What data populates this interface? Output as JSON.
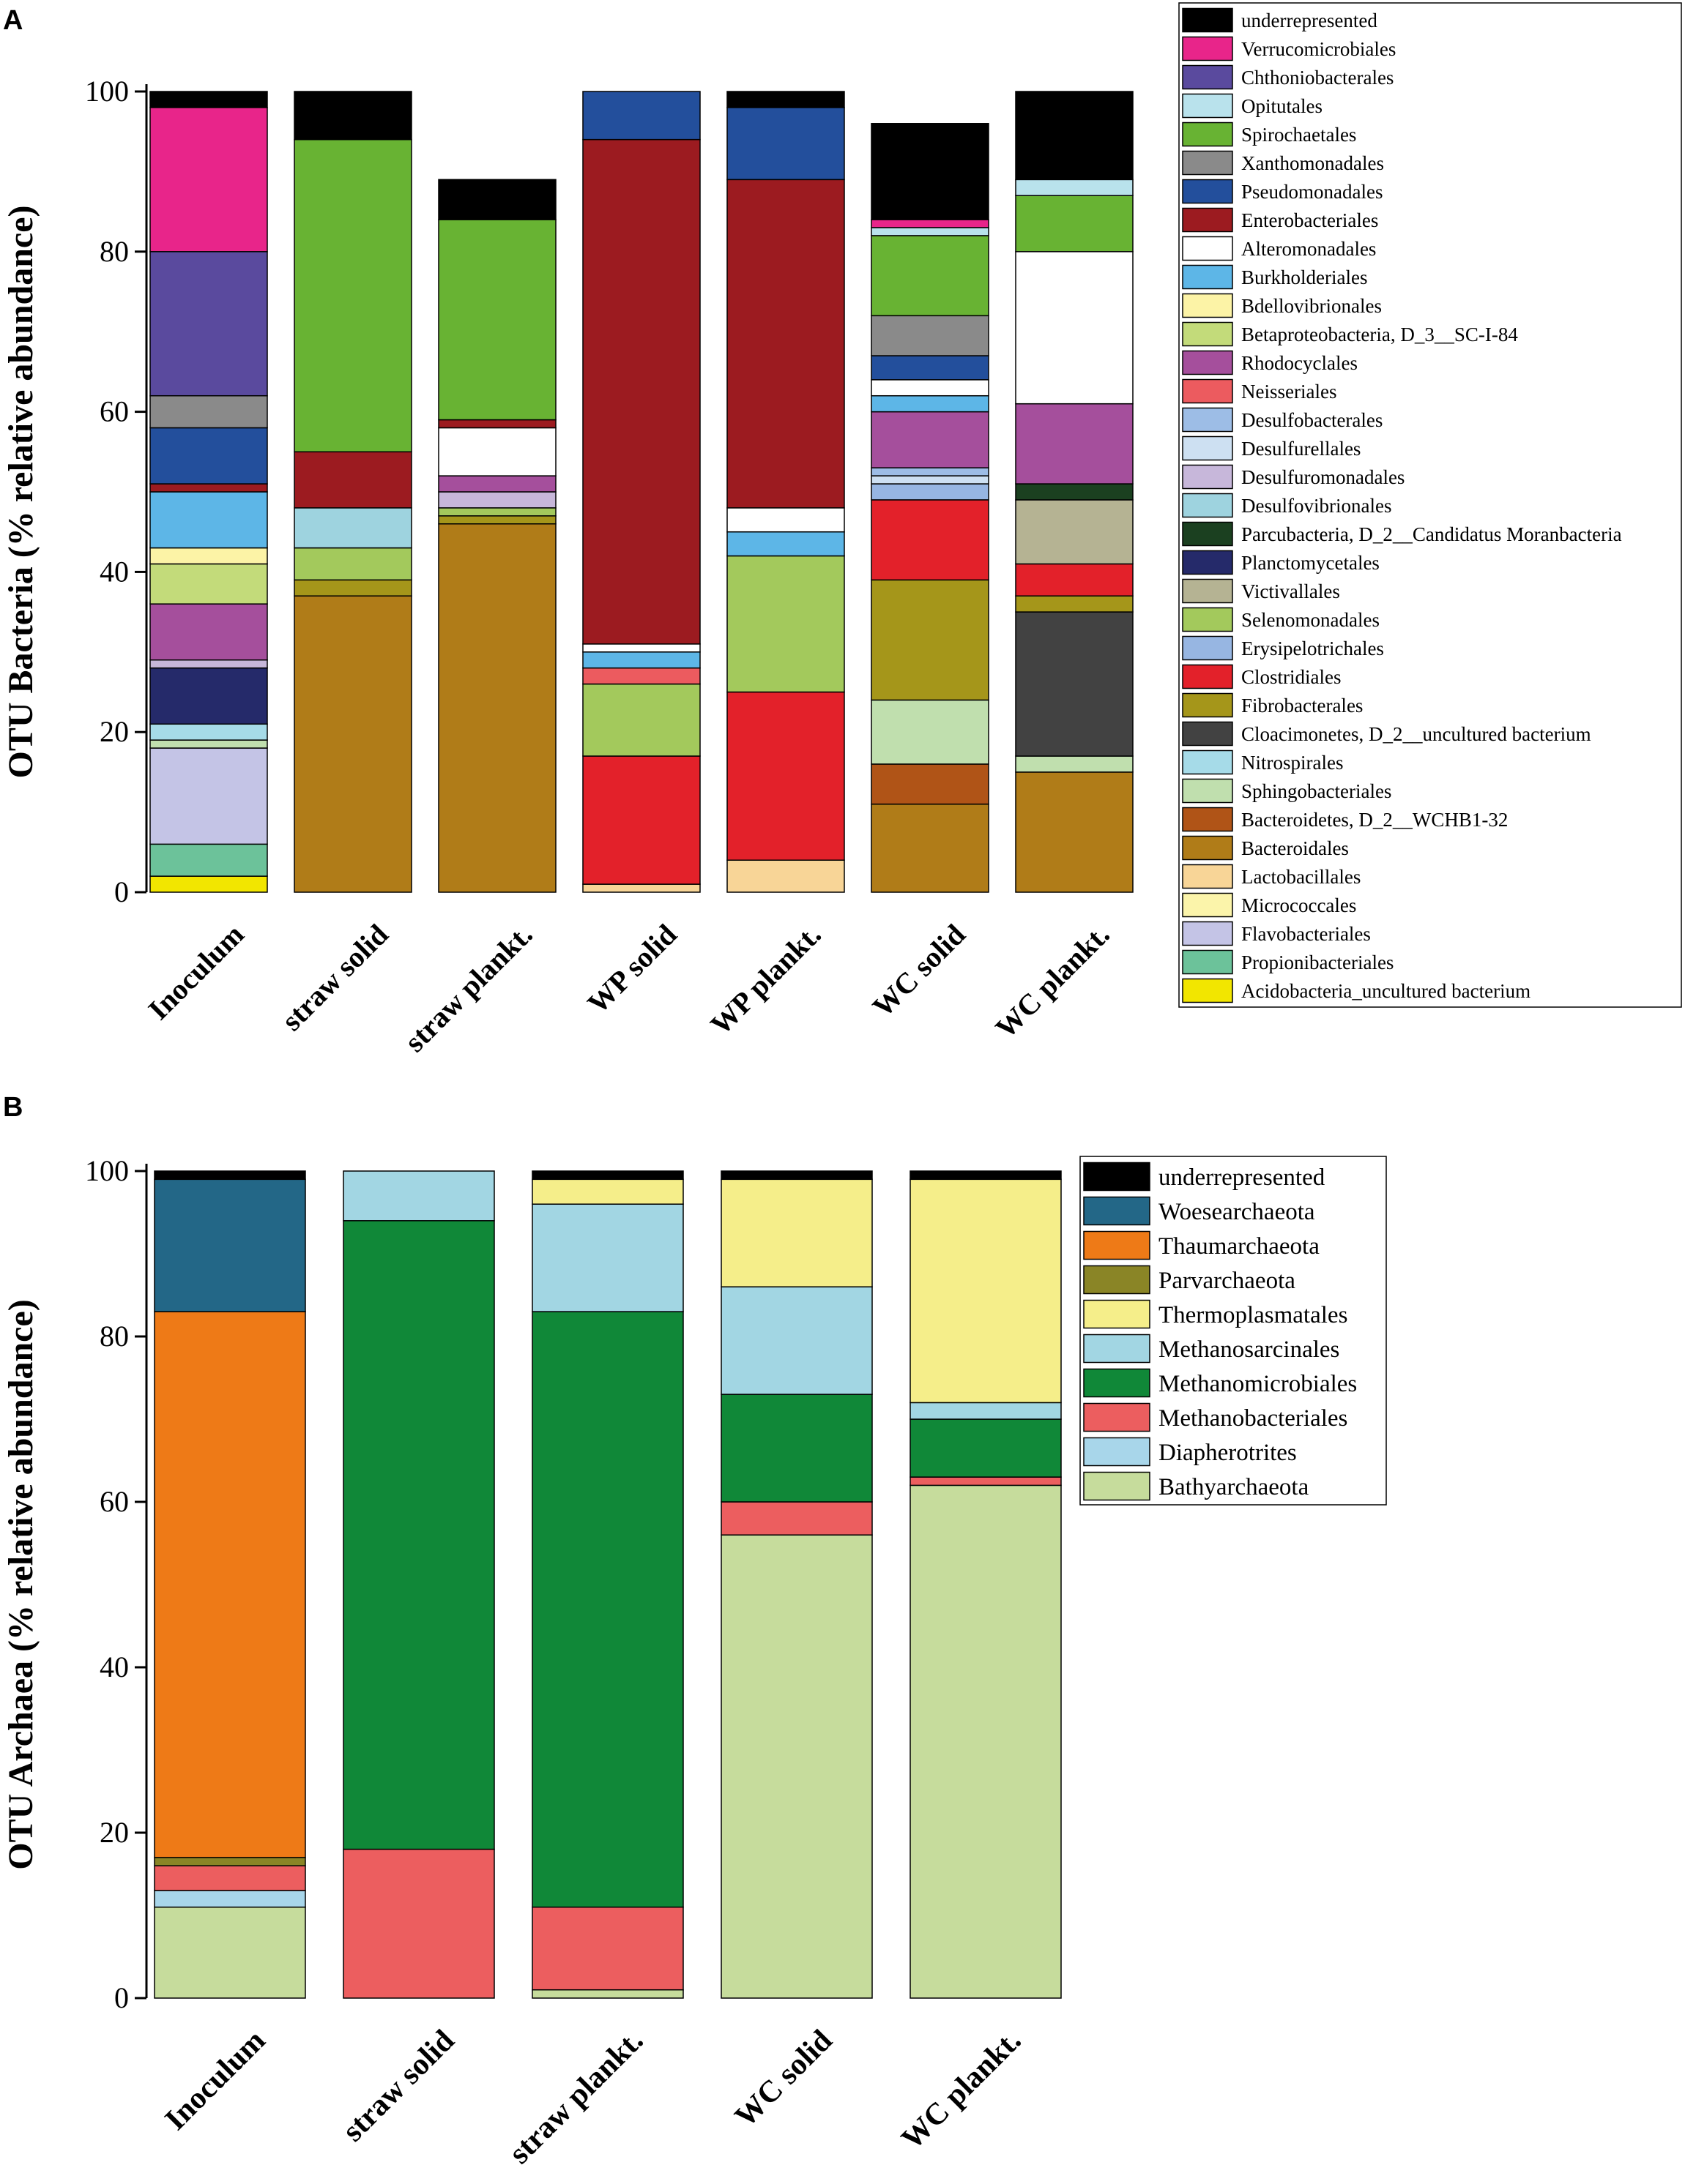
{
  "chart_data": [
    {
      "type": "bar",
      "stacked": true,
      "panel": "A",
      "ylabel": "OTU Bacteria (% relative abundance)",
      "ylim": [
        0,
        100
      ],
      "yticks": [
        0,
        20,
        40,
        60,
        80,
        100
      ],
      "categories": [
        "Inoculum",
        "straw solid",
        "straw plankt.",
        "WP solid",
        "WP plankt.",
        "WC solid",
        "WC plankt."
      ],
      "legend_position": "right",
      "series": [
        {
          "name": "Acidobacteria_uncultured bacterium",
          "color": "#f2e600",
          "values": [
            2,
            0,
            0,
            0,
            0,
            0,
            0
          ]
        },
        {
          "name": "Propionibacteriales",
          "color": "#6cc29a",
          "values": [
            4,
            0,
            0,
            0,
            0,
            0,
            0
          ]
        },
        {
          "name": "Flavobacteriales",
          "color": "#c4c4e6",
          "values": [
            12,
            0,
            0,
            0,
            0,
            0,
            0
          ]
        },
        {
          "name": "Micrococcales",
          "color": "#fbf4aa",
          "values": [
            0,
            0,
            0,
            0,
            0,
            0,
            0
          ]
        },
        {
          "name": "Lactobacillales",
          "color": "#f8d597",
          "values": [
            0,
            0,
            0,
            1,
            4,
            0,
            0
          ]
        },
        {
          "name": "Bacteroidales",
          "color": "#b07c18",
          "values": [
            0,
            37,
            46,
            0,
            0,
            11,
            15
          ]
        },
        {
          "name": "Bacteroidetes, D_2__WCHB1-32",
          "color": "#b05417",
          "values": [
            0,
            0,
            0,
            0,
            0,
            5,
            0
          ]
        },
        {
          "name": "Sphingobacteriales",
          "color": "#c0dfae",
          "values": [
            1,
            0,
            0,
            0,
            0,
            8,
            2
          ]
        },
        {
          "name": "Nitrospirales",
          "color": "#a6dbe8",
          "values": [
            2,
            0,
            0,
            0,
            0,
            0,
            0
          ]
        },
        {
          "name": "Cloacimonetes, D_2__uncultured bacterium",
          "color": "#424242",
          "values": [
            0,
            0,
            0,
            0,
            0,
            0,
            18
          ]
        },
        {
          "name": "Fibrobacterales",
          "color": "#a5961a",
          "values": [
            0,
            2,
            1,
            0,
            0,
            15,
            2
          ]
        },
        {
          "name": "Clostridiales",
          "color": "#e3212a",
          "values": [
            0,
            0,
            0,
            16,
            21,
            10,
            4
          ]
        },
        {
          "name": "Erysipelotrichales",
          "color": "#97b6e2",
          "values": [
            0,
            0,
            0,
            0,
            0,
            2,
            0
          ]
        },
        {
          "name": "Selenomonadales",
          "color": "#a3c95c",
          "values": [
            0,
            4,
            1,
            9,
            17,
            0,
            0
          ]
        },
        {
          "name": "Victivallales",
          "color": "#b5b393",
          "values": [
            0,
            0,
            0,
            0,
            0,
            0,
            8
          ]
        },
        {
          "name": "Planctomycetales",
          "color": "#252a6a",
          "values": [
            7,
            0,
            0,
            0,
            0,
            0,
            0
          ]
        },
        {
          "name": "Parcubacteria, D_2__Candidatus Moranbacteria",
          "color": "#1b4020",
          "values": [
            0,
            0,
            0,
            0,
            0,
            0,
            2
          ]
        },
        {
          "name": "Desulfovibrionales",
          "color": "#9ed3df",
          "values": [
            0,
            5,
            0,
            0,
            0,
            0,
            0
          ]
        },
        {
          "name": "Desulfuromonadales",
          "color": "#c7b7da",
          "values": [
            1,
            0,
            2,
            0,
            0,
            0,
            0
          ]
        },
        {
          "name": "Desulfurellales",
          "color": "#cde0f2",
          "values": [
            0,
            0,
            0,
            0,
            0,
            1,
            0
          ]
        },
        {
          "name": "Desulfobacterales",
          "color": "#9dbde6",
          "values": [
            0,
            0,
            0,
            0,
            0,
            1,
            0
          ]
        },
        {
          "name": "Neisseriales",
          "color": "#ec5b5f",
          "values": [
            0,
            0,
            0,
            2,
            0,
            0,
            0
          ]
        },
        {
          "name": "Rhodocyclales",
          "color": "#a54f9c",
          "values": [
            7,
            0,
            2,
            0,
            0,
            7,
            10
          ]
        },
        {
          "name": "Betaproteobacteria, D_3__SC-I-84",
          "color": "#c3db7a",
          "values": [
            5,
            0,
            0,
            0,
            0,
            0,
            0
          ]
        },
        {
          "name": "Bdellovibrionales",
          "color": "#fcf3a6",
          "values": [
            2,
            0,
            0,
            0,
            0,
            0,
            0
          ]
        },
        {
          "name": "Burkholderiales",
          "color": "#5db6e7",
          "values": [
            7,
            0,
            0,
            2,
            3,
            2,
            0
          ]
        },
        {
          "name": "Alteromonadales",
          "color": "#ffffff",
          "values": [
            0,
            0,
            6,
            1,
            3,
            2,
            19
          ]
        },
        {
          "name": "Enterobacteriales",
          "color": "#9c1b20",
          "values": [
            1,
            7,
            1,
            63,
            41,
            0,
            0
          ]
        },
        {
          "name": "Pseudomonadales",
          "color": "#234f9c",
          "values": [
            7,
            0,
            0,
            6,
            9,
            3,
            0
          ]
        },
        {
          "name": "Xanthomonadales",
          "color": "#8a8a8a",
          "values": [
            4,
            0,
            0,
            0,
            0,
            5,
            0
          ]
        },
        {
          "name": "Spirochaetales",
          "color": "#68b333",
          "values": [
            0,
            39,
            25,
            0,
            0,
            10,
            7
          ]
        },
        {
          "name": "Opitutales",
          "color": "#b9e2ec",
          "values": [
            0,
            0,
            0,
            0,
            0,
            1,
            2
          ]
        },
        {
          "name": "Chthoniobacterales",
          "color": "#5a4a9e",
          "values": [
            18,
            0,
            0,
            0,
            0,
            0,
            0
          ]
        },
        {
          "name": "Verrucomicrobiales",
          "color": "#e8258a",
          "values": [
            18,
            0,
            0,
            0,
            0,
            1,
            0
          ]
        },
        {
          "name": "underrepresented",
          "color": "#000000",
          "values": [
            2,
            6,
            5,
            0,
            2,
            12,
            11
          ]
        }
      ]
    },
    {
      "type": "bar",
      "stacked": true,
      "panel": "B",
      "ylabel": "OTU Archaea (% relative abundance)",
      "ylim": [
        0,
        100
      ],
      "yticks": [
        0,
        20,
        40,
        60,
        80,
        100
      ],
      "categories": [
        "Inoculum",
        "straw solid",
        "straw plankt.",
        "WC solid",
        "WC plankt."
      ],
      "legend_position": "right",
      "series": [
        {
          "name": "Bathyarchaeota",
          "color": "#c6dc9c",
          "values": [
            11,
            0,
            1,
            56,
            62
          ]
        },
        {
          "name": "Diapherotrites",
          "color": "#a8d6ea",
          "values": [
            2,
            0,
            0,
            0,
            0
          ]
        },
        {
          "name": "Methanobacteriales",
          "color": "#ec5e5f",
          "values": [
            3,
            18,
            10,
            4,
            1
          ]
        },
        {
          "name": "Methanomicrobiales",
          "color": "#108838",
          "values": [
            0,
            76,
            72,
            13,
            7
          ]
        },
        {
          "name": "Methanosarcinales",
          "color": "#a2d6e3",
          "values": [
            0,
            6,
            13,
            13,
            2
          ]
        },
        {
          "name": "Thermoplasmatales",
          "color": "#f5ee8a",
          "values": [
            0,
            0,
            3,
            13,
            27
          ]
        },
        {
          "name": "Parvarchaeota",
          "color": "#8a8526",
          "values": [
            1,
            0,
            0,
            0,
            0
          ]
        },
        {
          "name": "Thaumarchaeota",
          "color": "#ee7a17",
          "values": [
            66,
            0,
            0,
            0,
            0
          ]
        },
        {
          "name": "Woesearchaeota",
          "color": "#236787",
          "values": [
            16,
            0,
            0,
            0,
            0
          ]
        },
        {
          "name": "underrepresented",
          "color": "#000000",
          "values": [
            1,
            0,
            1,
            1,
            1
          ]
        }
      ]
    }
  ],
  "panel_labels": [
    "A",
    "B"
  ]
}
